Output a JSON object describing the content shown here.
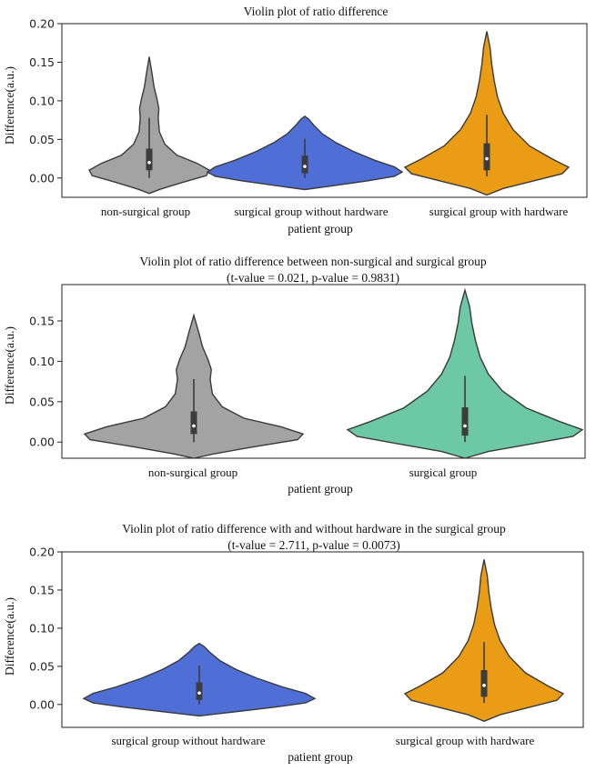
{
  "chart_data": [
    {
      "type": "violin",
      "title": "Violin plot of ratio difference",
      "subtitle": "",
      "xlabel": "patient group",
      "ylabel": "Difference(a.u.)",
      "ylim": [
        -0.025,
        0.2
      ],
      "yticks": [
        "0.00",
        "0.05",
        "0.10",
        "0.15",
        "0.20"
      ],
      "ytick_values": [
        0,
        0.05,
        0.1,
        0.15,
        0.2
      ],
      "categories": [
        "non-surgical group",
        "surgical group without  hardware",
        "surgical group with hardware"
      ],
      "colors": [
        "#a3a3a3",
        "#4f6fd6",
        "#e99c14"
      ],
      "series": [
        {
          "min": -0.02,
          "max": 0.157,
          "q1": 0.01,
          "median": 0.02,
          "q3": 0.038,
          "whisker_low": 0.0,
          "whisker_high": 0.078
        },
        {
          "min": -0.015,
          "max": 0.08,
          "q1": 0.006,
          "median": 0.015,
          "q3": 0.029,
          "whisker_low": 0.0,
          "whisker_high": 0.051
        },
        {
          "min": -0.022,
          "max": 0.19,
          "q1": 0.01,
          "median": 0.025,
          "q3": 0.045,
          "whisker_low": 0.002,
          "whisker_high": 0.082
        }
      ]
    },
    {
      "type": "violin",
      "title": "Violin plot of ratio difference between non-surgical and surgical group",
      "subtitle": "(t-value = 0.021, p-value = 0.9831)",
      "xlabel": "patient group",
      "ylabel": "Difference(a.u.)",
      "ylim": [
        -0.02,
        0.195
      ],
      "yticks": [
        "0.00",
        "0.05",
        "0.10",
        "0.15"
      ],
      "ytick_values": [
        0,
        0.05,
        0.1,
        0.15
      ],
      "categories": [
        "non-surgical group",
        "surgical group"
      ],
      "colors": [
        "#a3a3a3",
        "#6cc8a6"
      ],
      "series": [
        {
          "min": -0.02,
          "max": 0.157,
          "q1": 0.01,
          "median": 0.02,
          "q3": 0.038,
          "whisker_low": 0.0,
          "whisker_high": 0.078
        },
        {
          "min": -0.02,
          "max": 0.188,
          "q1": 0.008,
          "median": 0.02,
          "q3": 0.043,
          "whisker_low": 0.0,
          "whisker_high": 0.082
        }
      ]
    },
    {
      "type": "violin",
      "title": "Violin plot of  ratio difference with and without hardware in the surgical group",
      "subtitle": "(t-value = 2.711, p-value = 0.0073)",
      "xlabel": "patient group",
      "ylabel": "Difference(a.u.)",
      "ylim": [
        -0.03,
        0.2
      ],
      "yticks": [
        "0.00",
        "0.05",
        "0.10",
        "0.15",
        "0.20"
      ],
      "ytick_values": [
        0,
        0.05,
        0.1,
        0.15,
        0.2
      ],
      "categories": [
        "surgical group without hardware",
        "surgical group with hardware"
      ],
      "colors": [
        "#4f6fd6",
        "#e99c14"
      ],
      "series": [
        {
          "min": -0.015,
          "max": 0.08,
          "q1": 0.006,
          "median": 0.015,
          "q3": 0.029,
          "whisker_low": 0.0,
          "whisker_high": 0.051
        },
        {
          "min": -0.022,
          "max": 0.19,
          "q1": 0.01,
          "median": 0.025,
          "q3": 0.045,
          "whisker_low": 0.002,
          "whisker_high": 0.082
        }
      ]
    }
  ]
}
